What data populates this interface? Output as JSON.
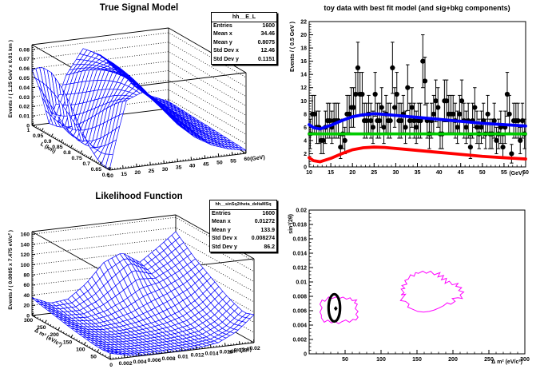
{
  "colors": {
    "mesh": "#0000ff",
    "total_fit": "#0000ff",
    "background_fit": "#00cc00",
    "signal_fit": "#ff0000",
    "contour": "#ff00ff",
    "data_marker": "#000000",
    "axis": "#000000",
    "pad_background": "#ffffff"
  },
  "pads": {
    "signal_model": {
      "title": "True Signal Model",
      "x_title": "(GeV)",
      "y_title": "L (km)",
      "z_title": "Events / ( 1.25 GeV x 0.01 km )",
      "x_ticks": [
        "10",
        "15",
        "20",
        "25",
        "30",
        "35",
        "40",
        "45",
        "50",
        "55",
        "60"
      ],
      "y_ticks": [
        "0.6",
        "0.65",
        "0.7",
        "0.75",
        "0.8",
        "0.85",
        "0.9",
        "0.95",
        "1"
      ],
      "z_ticks": [
        "0",
        "0.01",
        "0.02",
        "0.03",
        "0.04",
        "0.05",
        "0.06",
        "0.07",
        "0.08"
      ],
      "stats": {
        "title": "hh__E_L",
        "rows": [
          [
            "Entries",
            "1600"
          ],
          [
            "Mean x",
            "34.46"
          ],
          [
            "Mean y",
            "0.8075"
          ],
          [
            "Std Dev x",
            "12.46"
          ],
          [
            "Std Dev y",
            "0.1151"
          ]
        ]
      }
    },
    "toy_fit": {
      "title": "toy data with best fit model (and sig+bkg components)",
      "x_title": "(GeV)",
      "y_title": "Events / ( 0.5 GeV )",
      "x_ticks": [
        "10",
        "15",
        "20",
        "25",
        "30",
        "35",
        "40",
        "45",
        "50",
        "55",
        "60"
      ],
      "y_ticks": [
        "0",
        "2",
        "4",
        "6",
        "8",
        "10",
        "12",
        "14",
        "16",
        "18",
        "20",
        "22"
      ]
    },
    "likelihood": {
      "title": "Likelihood Function",
      "x_title": "sin² (2 θ)",
      "y_title": "Δ m² (eV/c²)",
      "z_title": "Events / ( 0.0005 x 7.475 eV/c² )",
      "x_ticks": [
        "0",
        "0.002",
        "0.004",
        "0.006",
        "0.008",
        "0.01",
        "0.012",
        "0.014",
        "0.016",
        "0.018",
        "0.02"
      ],
      "y_ticks": [
        "50",
        "100",
        "150",
        "200",
        "250",
        "300"
      ],
      "z_ticks": [
        "0",
        "20",
        "40",
        "60",
        "80",
        "100",
        "120",
        "140",
        "160"
      ],
      "stats": {
        "title": "hh__sinSq2theta_deltaMSq",
        "rows": [
          [
            "Entries",
            "1600"
          ],
          [
            "Mean x",
            "0.01272"
          ],
          [
            "Mean y",
            "133.9"
          ],
          [
            "Std Dev x",
            "0.008274"
          ],
          [
            "Std Dev y",
            "86.2"
          ]
        ]
      }
    },
    "contour": {
      "x_title": "Δ m² (eV/c²)",
      "y_title": "sin²(2θ)",
      "x_ticks": [
        "50",
        "100",
        "150",
        "200",
        "250",
        "300"
      ],
      "y_ticks": [
        "0",
        "0.002",
        "0.004",
        "0.006",
        "0.008",
        "0.01",
        "0.012",
        "0.014",
        "0.016",
        "0.018",
        "0.02"
      ]
    }
  },
  "chart_data": [
    {
      "id": "signal_model",
      "type": "surface3d",
      "title": "True Signal Model",
      "xlabel": "(GeV)",
      "ylabel": "L (km)",
      "zlabel": "Events / ( 1.25 GeV x 0.01 km )",
      "x_range": [
        10,
        60
      ],
      "y_range": [
        0.6,
        1.0
      ],
      "z_range": [
        0,
        0.08
      ],
      "x_nodes": [
        10,
        13,
        16.25,
        22.5,
        28.75,
        35,
        41.25,
        47.5,
        53.75,
        60
      ],
      "y_nodes": [
        0.6,
        0.65,
        0.7,
        0.75,
        0.8,
        0.85,
        0.9,
        0.95,
        1.0
      ],
      "z_grid": [
        [
          0.0005,
          0.0371,
          0.0712,
          0.0784,
          0.0592,
          0.0391,
          0.0236,
          0.0131,
          0.0068,
          0.0032
        ],
        [
          0.002,
          0.023,
          0.0626,
          0.0812,
          0.0647,
          0.0438,
          0.0267,
          0.015,
          0.0078,
          0.0037
        ],
        [
          0.0117,
          0.0111,
          0.0515,
          0.082,
          0.0694,
          0.0482,
          0.0299,
          0.017,
          0.0089,
          0.0043
        ],
        [
          0.0268,
          0.0029,
          0.0394,
          0.0806,
          0.0731,
          0.0524,
          0.033,
          0.0189,
          0.0099,
          0.0048
        ],
        [
          0.0448,
          0.0,
          0.0274,
          0.0772,
          0.0757,
          0.0561,
          0.036,
          0.0209,
          0.011,
          0.0054
        ],
        [
          0.059,
          0.0027,
          0.0164,
          0.072,
          0.0772,
          0.0594,
          0.0389,
          0.0228,
          0.0121,
          0.0059
        ],
        [
          0.0675,
          0.0108,
          0.0077,
          0.0653,
          0.0774,
          0.062,
          0.0415,
          0.0246,
          0.0132,
          0.0065
        ],
        [
          0.0675,
          0.0226,
          0.002,
          0.0572,
          0.0765,
          0.0641,
          0.0439,
          0.0264,
          0.0143,
          0.0071
        ],
        [
          0.0587,
          0.0364,
          0.0,
          0.0484,
          0.0743,
          0.0655,
          0.046,
          0.0281,
          0.0154,
          0.0076
        ]
      ]
    },
    {
      "id": "toy_fit",
      "type": "scatter",
      "title": "toy data with best fit model (and sig+bkg components)",
      "xlabel": "(GeV)",
      "ylabel": "Events / ( 0.5 GeV )",
      "x_range": [
        10,
        60
      ],
      "y_range": [
        0,
        22
      ],
      "bin_width": 0.5,
      "x_start": 10.25,
      "counts": [
        5,
        8,
        8,
        6,
        6,
        4,
        4,
        6,
        7,
        7,
        6,
        7,
        7,
        7,
        3,
        5,
        4,
        8,
        8,
        9,
        9,
        11,
        15,
        11,
        11,
        7,
        7,
        8,
        7,
        6,
        11,
        7,
        7,
        9,
        6,
        8,
        7,
        7,
        15,
        9,
        11,
        7,
        7,
        8,
        6,
        12,
        7,
        9,
        7,
        6,
        7,
        7,
        16,
        13,
        7,
        5,
        7,
        8,
        10,
        9,
        5,
        5,
        10,
        10,
        8,
        8,
        8,
        7,
        6,
        8,
        10,
        7,
        6,
        7,
        3,
        7,
        9,
        6,
        5,
        6,
        7,
        5,
        8,
        5,
        5,
        7,
        4,
        5,
        6,
        3,
        6,
        11,
        8,
        2,
        7,
        7,
        7,
        4,
        7,
        5
      ],
      "fit_x": [
        10,
        11,
        12.5,
        15,
        17.5,
        20,
        22.5,
        25,
        27.5,
        30,
        32.5,
        35,
        37.5,
        40,
        42.5,
        45,
        47.5,
        50,
        52.5,
        55,
        57.5,
        60
      ],
      "fit_total": [
        6.4,
        5.95,
        5.75,
        6.3,
        7.0,
        7.6,
        7.9,
        8.05,
        7.95,
        7.8,
        7.65,
        7.5,
        7.35,
        7.2,
        7.05,
        6.9,
        6.75,
        6.6,
        6.5,
        6.4,
        6.3,
        6.2
      ],
      "fit_signal": [
        1.4,
        0.95,
        0.78,
        1.3,
        2.0,
        2.6,
        2.9,
        3.0,
        2.95,
        2.8,
        2.65,
        2.5,
        2.35,
        2.2,
        2.05,
        1.9,
        1.75,
        1.6,
        1.5,
        1.4,
        1.3,
        1.2
      ],
      "bkg_level": 5.0
    },
    {
      "id": "likelihood",
      "type": "surface3d",
      "title": "Likelihood Function",
      "xlabel": "sin² (2 θ)",
      "ylabel": "Δ m² (eV/c²)",
      "zlabel": "Events / ( 0.0005 x 7.475 eV/c² )",
      "x_range": [
        0,
        0.02
      ],
      "y_range": [
        0,
        300
      ],
      "z_range": [
        0,
        160
      ],
      "x_nodes": [
        0,
        0.0025,
        0.005,
        0.0075,
        0.01,
        0.0125,
        0.015,
        0.0175,
        0.02
      ],
      "y_nodes": [
        0,
        37.5,
        75,
        112.5,
        150,
        187.5,
        225,
        262.5,
        300
      ],
      "z_grid": [
        [
          12,
          4,
          1,
          0.5,
          1,
          3,
          8,
          25,
          55
        ],
        [
          10,
          2,
          0.3,
          0.2,
          0.8,
          2,
          6,
          20,
          48
        ],
        [
          12,
          3,
          0.5,
          0.5,
          1.5,
          3.5,
          9,
          26,
          55
        ],
        [
          15,
          5,
          1,
          1.2,
          3,
          7,
          15,
          34,
          64
        ],
        [
          18,
          7,
          2,
          3,
          7,
          14,
          26,
          46,
          76
        ],
        [
          22,
          9,
          5,
          8,
          16,
          30,
          45,
          62,
          88
        ],
        [
          26,
          12,
          10,
          18,
          34,
          55,
          62,
          78,
          100
        ],
        [
          30,
          16,
          16,
          32,
          60,
          88,
          72,
          92,
          116
        ],
        [
          35,
          20,
          24,
          50,
          88,
          103,
          80,
          105,
          132
        ]
      ]
    },
    {
      "id": "contour",
      "type": "contour",
      "xlabel": "Δ m² (eV/c²)",
      "ylabel": "sin²(2θ)",
      "x_range": [
        0,
        300
      ],
      "y_range": [
        0,
        0.02
      ],
      "contours": [
        [
          [
            17,
            0.005
          ],
          [
            21,
            0.0044
          ],
          [
            26,
            0.0047
          ],
          [
            31,
            0.0043
          ],
          [
            36,
            0.0045
          ],
          [
            41,
            0.0042
          ],
          [
            46,
            0.0045
          ],
          [
            51,
            0.0047
          ],
          [
            56,
            0.0044
          ],
          [
            61,
            0.0048
          ],
          [
            65,
            0.0047
          ],
          [
            68,
            0.0051
          ],
          [
            65,
            0.0055
          ],
          [
            68,
            0.0059
          ],
          [
            64,
            0.0063
          ],
          [
            67,
            0.0069
          ],
          [
            63,
            0.0071
          ],
          [
            66,
            0.0075
          ],
          [
            60,
            0.0074
          ],
          [
            57,
            0.0078
          ],
          [
            52,
            0.0076
          ],
          [
            47,
            0.0079
          ],
          [
            42,
            0.0077
          ],
          [
            37,
            0.0079
          ],
          [
            32,
            0.0077
          ],
          [
            27,
            0.0079
          ],
          [
            22,
            0.0073
          ],
          [
            18,
            0.0075
          ],
          [
            15,
            0.0069
          ],
          [
            18,
            0.0064
          ],
          [
            15,
            0.0058
          ],
          [
            17,
            0.0054
          ]
        ],
        [
          [
            128,
            0.009
          ],
          [
            132,
            0.0085
          ],
          [
            128,
            0.0082
          ],
          [
            134,
            0.0083
          ],
          [
            130,
            0.0078
          ],
          [
            127,
            0.0074
          ],
          [
            134,
            0.0073
          ],
          [
            139,
            0.0069
          ],
          [
            137,
            0.0065
          ],
          [
            144,
            0.0062
          ],
          [
            151,
            0.0059
          ],
          [
            159,
            0.0058
          ],
          [
            167,
            0.0059
          ],
          [
            174,
            0.0061
          ],
          [
            181,
            0.0064
          ],
          [
            187,
            0.0067
          ],
          [
            192,
            0.0071
          ],
          [
            197,
            0.0069
          ],
          [
            203,
            0.0073
          ],
          [
            199,
            0.0077
          ],
          [
            207,
            0.0078
          ],
          [
            213,
            0.0077
          ],
          [
            210,
            0.0082
          ],
          [
            215,
            0.0086
          ],
          [
            208,
            0.0088
          ],
          [
            212,
            0.0092
          ],
          [
            204,
            0.0094
          ],
          [
            207,
            0.0098
          ],
          [
            199,
            0.0096
          ],
          [
            195,
            0.0101
          ],
          [
            189,
            0.0098
          ],
          [
            191,
            0.0105
          ],
          [
            184,
            0.0103
          ],
          [
            187,
            0.0109
          ],
          [
            179,
            0.0107
          ],
          [
            182,
            0.0113
          ],
          [
            174,
            0.011
          ],
          [
            169,
            0.0115
          ],
          [
            163,
            0.0112
          ],
          [
            158,
            0.0115
          ],
          [
            152,
            0.0112
          ],
          [
            148,
            0.0113
          ],
          [
            146,
            0.0108
          ],
          [
            141,
            0.011
          ],
          [
            138,
            0.0104
          ],
          [
            133,
            0.0102
          ],
          [
            136,
            0.0097
          ],
          [
            129,
            0.0095
          ],
          [
            133,
            0.0091
          ]
        ]
      ],
      "ellipse": {
        "cx": 35,
        "cy": 0.0064,
        "rx": 8,
        "ry": 0.0019
      },
      "best_fit": {
        "x": 37,
        "y": 0.0063
      }
    }
  ]
}
